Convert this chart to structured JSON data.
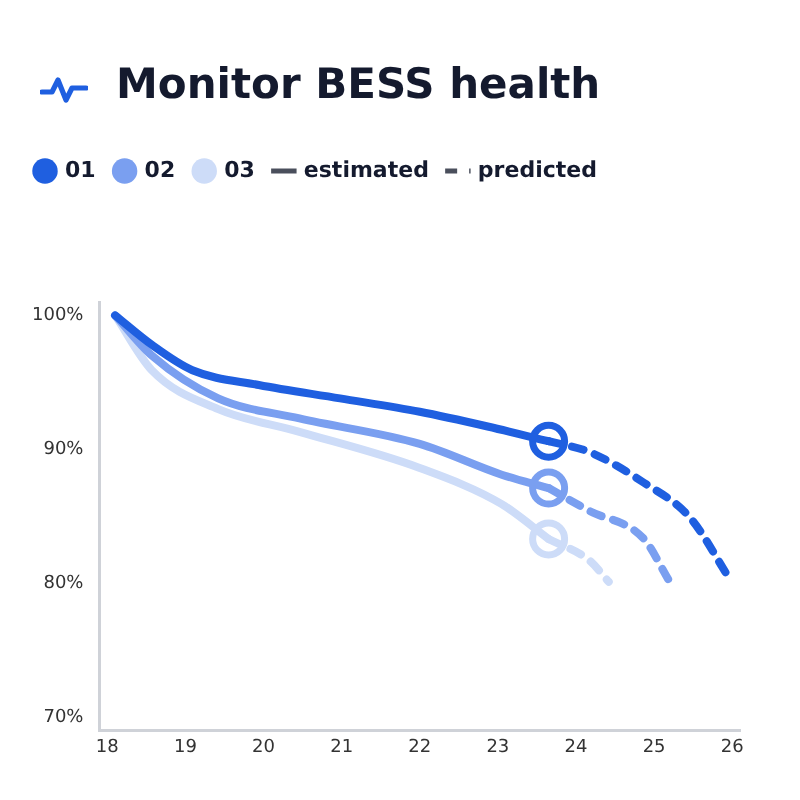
{
  "chart_data": {
    "type": "line",
    "title": "Monitor BESS health",
    "legend": "top left",
    "grid": false,
    "marker": "none",
    "xlim": [
      17.9,
      26.1
    ],
    "xticks": [
      18,
      19,
      20,
      21,
      22,
      23,
      24,
      25,
      26
    ],
    "ylim": [
      69,
      101
    ],
    "yticks": [
      {
        "value": 70,
        "label": "70%"
      },
      {
        "value": 80,
        "label": "80%"
      },
      {
        "value": 90,
        "label": "90%"
      },
      {
        "value": 100,
        "label": "100%"
      }
    ],
    "series": [
      {
        "name": "01",
        "color": "#1f5fe0",
        "x": [
          18.1,
          18.57,
          19.09,
          19.94,
          20.98,
          22.0,
          22.87,
          23.65
        ],
        "values": [
          100,
          97.8,
          95.9,
          94.8,
          93.8,
          92.8,
          91.7,
          90.6
        ]
      },
      {
        "name": "02",
        "color": "#7a9ff0",
        "x": [
          18.1,
          18.57,
          19.42,
          20.46,
          22.0,
          23.05,
          23.65
        ],
        "values": [
          100,
          97.0,
          93.8,
          92.3,
          90.4,
          88.1,
          87.1
        ]
      },
      {
        "name": "03",
        "color": "#cddcf8",
        "x": [
          18.1,
          18.57,
          19.42,
          20.46,
          22.0,
          23.05,
          23.65
        ],
        "values": [
          100,
          95.9,
          93.0,
          91.3,
          88.6,
          85.9,
          83.3
        ]
      },
      {
        "color": "#1f5fe0",
        "line_style": "dashed",
        "x": [
          23.65,
          24.17,
          24.87,
          25.46,
          25.98
        ],
        "values": [
          90.6,
          89.8,
          87.5,
          84.9,
          80.2
        ]
      },
      {
        "color": "#7a9ff0",
        "line_style": "dashed",
        "x": [
          23.65,
          24.17,
          24.87,
          25.18
        ],
        "values": [
          87.1,
          85.4,
          83.3,
          80.3
        ]
      },
      {
        "color": "#cddcf8",
        "line_style": "dashed",
        "x": [
          23.65,
          24.17,
          24.42
        ],
        "values": [
          83.3,
          81.7,
          80.1
        ]
      },
      {
        "type": "scatter",
        "marker": "circle",
        "color": "#1f5fe0",
        "x": [
          23.65
        ],
        "values": [
          90.6
        ]
      },
      {
        "type": "scatter",
        "marker": "circle",
        "color": "#7a9ff0",
        "x": [
          23.65
        ],
        "values": [
          87.1
        ]
      },
      {
        "type": "scatter",
        "marker": "circle",
        "color": "#cddcf8",
        "x": [
          23.65
        ],
        "values": [
          83.3
        ]
      },
      {
        "name": "estimated",
        "color": "#4a4f5c",
        "line_style": "solid"
      },
      {
        "name": "predicted",
        "color": "#4a4f5c",
        "line_style": "dashed"
      }
    ]
  }
}
